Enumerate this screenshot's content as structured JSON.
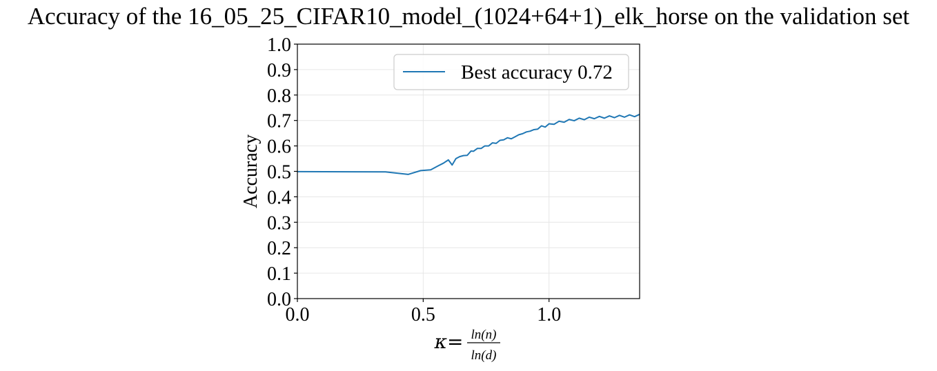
{
  "chart_data": {
    "type": "line",
    "title": "Accuracy of the 16_05_25_CIFAR10_model_(1024+64+1)_elk_horse on the validation set",
    "xlabel": {
      "symbol": "κ",
      "equals": "=",
      "numerator": "ln(n)",
      "denominator": "ln(d)"
    },
    "ylabel": "Accuracy",
    "xlim": [
      0.0,
      1.36
    ],
    "ylim": [
      0.0,
      1.0
    ],
    "xticks": [
      0.0,
      0.5,
      1.0
    ],
    "xtick_labels": [
      "0.0",
      "0.5",
      "1.0"
    ],
    "yticks": [
      0.0,
      0.1,
      0.2,
      0.3,
      0.4,
      0.5,
      0.6,
      0.7,
      0.8,
      0.9,
      1.0
    ],
    "ytick_labels": [
      "0.0",
      "0.1",
      "0.2",
      "0.3",
      "0.4",
      "0.5",
      "0.6",
      "0.7",
      "0.8",
      "0.9",
      "1.0"
    ],
    "grid": true,
    "legend_position": "top-right",
    "series": [
      {
        "name": "Best accuracy 0.72",
        "color": "#1f77b4",
        "x": [
          0.0,
          0.35,
          0.44,
          0.49,
          0.53,
          0.56,
          0.58,
          0.6,
          0.615,
          0.63,
          0.645,
          0.66,
          0.675,
          0.69,
          0.7,
          0.715,
          0.73,
          0.745,
          0.76,
          0.775,
          0.79,
          0.805,
          0.82,
          0.835,
          0.85,
          0.865,
          0.88,
          0.895,
          0.91,
          0.925,
          0.94,
          0.955,
          0.97,
          0.985,
          1.0,
          1.02,
          1.04,
          1.06,
          1.08,
          1.1,
          1.12,
          1.14,
          1.16,
          1.18,
          1.2,
          1.22,
          1.24,
          1.26,
          1.28,
          1.3,
          1.32,
          1.34,
          1.36
        ],
        "y": [
          0.499,
          0.498,
          0.488,
          0.503,
          0.506,
          0.522,
          0.532,
          0.545,
          0.525,
          0.55,
          0.558,
          0.562,
          0.563,
          0.58,
          0.579,
          0.59,
          0.59,
          0.6,
          0.6,
          0.612,
          0.61,
          0.622,
          0.624,
          0.632,
          0.628,
          0.64,
          0.64,
          0.652,
          0.651,
          0.662,
          0.66,
          0.67,
          0.675,
          0.678,
          0.683,
          0.689,
          0.693,
          0.697,
          0.7,
          0.703,
          0.705,
          0.707,
          0.709,
          0.711,
          0.712,
          0.713,
          0.714,
          0.715,
          0.716,
          0.717,
          0.718,
          0.719,
          0.72
        ]
      }
    ]
  }
}
